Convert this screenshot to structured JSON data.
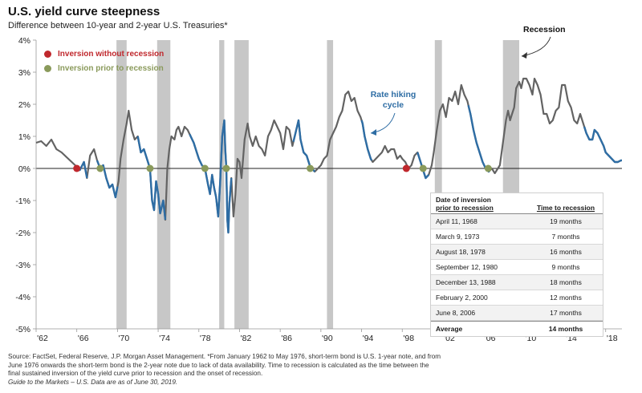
{
  "header": {
    "title": "U.S. yield curve steepness",
    "subtitle": "Difference between 10-year and 2-year U.S. Treasuries*"
  },
  "legend": {
    "items": [
      {
        "label": "Inversion without recession",
        "color": "#c0282d"
      },
      {
        "label": "Inversion prior to recession",
        "color": "#8a9a5b"
      }
    ]
  },
  "annotations": {
    "recession": "Recession",
    "rate_hiking_line1": "Rate hiking",
    "rate_hiking_line2": "cycle"
  },
  "table": {
    "header_col1_line1": "Date of inversion",
    "header_col1_line2": "prior to recession",
    "header_col2": "Time to recession",
    "rows": [
      {
        "date": "April 11, 1968",
        "time": "19 months"
      },
      {
        "date": "March 9, 1973",
        "time": "7 months"
      },
      {
        "date": "August 18, 1978",
        "time": "16 months"
      },
      {
        "date": "September 12, 1980",
        "time": "9 months"
      },
      {
        "date": "December 13, 1988",
        "time": "18 months"
      },
      {
        "date": "February 2, 2000",
        "time": "12 months"
      },
      {
        "date": "June 8, 2006",
        "time": "17 months"
      }
    ],
    "average_label": "Average",
    "average_value": "14 months"
  },
  "footnote": {
    "line1": "Source: FactSet, Federal Reserve, J.P. Morgan Asset Management. *From January 1962 to May 1976, short-term bond is U.S. 1-year note, and from",
    "line2": "June 1976 onwards the short-term bond is the 2-year note due to lack of data availability. Time to recession is calculated as the time between the",
    "line3": "final sustained inversion of the yield curve prior to recession and the onset of recession.",
    "line4": "Guide to the Markets – U.S. Data are as of June 30, 2019."
  },
  "colors": {
    "line": "#636363",
    "hiking": "#2e6da4",
    "recession_band": "#bdbdbd",
    "red_dot": "#c0282d",
    "olive_dot": "#8a9a5b"
  },
  "chart_data": {
    "type": "line",
    "xlim": [
      1962,
      2019.6
    ],
    "ylim": [
      -5,
      4
    ],
    "x_ticks": [
      1962,
      1966,
      1970,
      1974,
      1978,
      1982,
      1986,
      1990,
      1994,
      1998,
      2002,
      2006,
      2010,
      2014,
      2018
    ],
    "x_tick_labels": [
      "'62",
      "'66",
      "'70",
      "'74",
      "'78",
      "'82",
      "'86",
      "'90",
      "'94",
      "'98",
      "'02",
      "'06",
      "'10",
      "'14",
      "'18"
    ],
    "y_ticks": [
      -5,
      -4,
      -3,
      -2,
      -1,
      0,
      1,
      2,
      3,
      4
    ],
    "y_tick_labels": [
      "-5%",
      "-4%",
      "-3%",
      "-2%",
      "-1%",
      "0%",
      "1%",
      "2%",
      "3%",
      "4%"
    ],
    "recessions": [
      [
        1969.9,
        1970.9
      ],
      [
        1973.9,
        1975.2
      ],
      [
        1980.0,
        1980.5
      ],
      [
        1981.5,
        1982.9
      ],
      [
        1990.6,
        1991.2
      ],
      [
        2001.2,
        2001.9
      ],
      [
        2007.9,
        2009.5
      ]
    ],
    "series": [
      {
        "values": [
          [
            1962.0,
            0.8
          ],
          [
            1962.5,
            0.85
          ],
          [
            1963.0,
            0.7
          ],
          [
            1963.5,
            0.9
          ],
          [
            1964.0,
            0.6
          ],
          [
            1964.5,
            0.5
          ],
          [
            1965.0,
            0.35
          ],
          [
            1965.5,
            0.2
          ],
          [
            1966.0,
            0.05
          ],
          [
            1966.3,
            -0.05
          ],
          [
            1966.7,
            0.2
          ],
          [
            1967.0,
            -0.3
          ],
          [
            1967.3,
            0.4
          ],
          [
            1967.7,
            0.6
          ],
          [
            1968.0,
            0.25
          ],
          [
            1968.3,
            0.0
          ],
          [
            1968.6,
            0.1
          ],
          [
            1968.9,
            -0.3
          ],
          [
            1969.2,
            -0.6
          ],
          [
            1969.5,
            -0.5
          ],
          [
            1969.8,
            -0.9
          ],
          [
            1970.1,
            -0.4
          ],
          [
            1970.3,
            0.3
          ],
          [
            1970.6,
            0.9
          ],
          [
            1970.9,
            1.4
          ],
          [
            1971.1,
            1.8
          ],
          [
            1971.4,
            1.2
          ],
          [
            1971.7,
            0.9
          ],
          [
            1972.0,
            1.0
          ],
          [
            1972.3,
            0.5
          ],
          [
            1972.6,
            0.6
          ],
          [
            1972.9,
            0.3
          ],
          [
            1973.2,
            0.0
          ],
          [
            1973.4,
            -1.0
          ],
          [
            1973.6,
            -1.3
          ],
          [
            1973.8,
            -0.4
          ],
          [
            1974.0,
            -0.8
          ],
          [
            1974.2,
            -1.4
          ],
          [
            1974.5,
            -1.0
          ],
          [
            1974.7,
            -1.6
          ],
          [
            1974.9,
            0.0
          ],
          [
            1975.1,
            0.6
          ],
          [
            1975.3,
            1.0
          ],
          [
            1975.6,
            0.9
          ],
          [
            1975.8,
            1.2
          ],
          [
            1976.0,
            1.3
          ],
          [
            1976.3,
            1.0
          ],
          [
            1976.6,
            1.3
          ],
          [
            1976.9,
            1.2
          ],
          [
            1977.2,
            1.0
          ],
          [
            1977.5,
            0.8
          ],
          [
            1977.8,
            0.5
          ],
          [
            1978.0,
            0.3
          ],
          [
            1978.3,
            0.1
          ],
          [
            1978.6,
            0.0
          ],
          [
            1978.9,
            -0.5
          ],
          [
            1979.1,
            -0.8
          ],
          [
            1979.3,
            -0.2
          ],
          [
            1979.5,
            -0.6
          ],
          [
            1979.7,
            -0.9
          ],
          [
            1979.9,
            -1.5
          ],
          [
            1980.1,
            -0.4
          ],
          [
            1980.3,
            1.0
          ],
          [
            1980.5,
            1.5
          ],
          [
            1980.6,
            0.6
          ],
          [
            1980.7,
            0.0
          ],
          [
            1980.8,
            -1.6
          ],
          [
            1980.9,
            -2.0
          ],
          [
            1981.0,
            -1.1
          ],
          [
            1981.2,
            -0.3
          ],
          [
            1981.4,
            -1.5
          ],
          [
            1981.6,
            -0.8
          ],
          [
            1981.8,
            0.3
          ],
          [
            1982.0,
            0.2
          ],
          [
            1982.2,
            -0.3
          ],
          [
            1982.5,
            0.9
          ],
          [
            1982.8,
            1.4
          ],
          [
            1983.0,
            1.0
          ],
          [
            1983.3,
            0.7
          ],
          [
            1983.6,
            1.0
          ],
          [
            1983.9,
            0.7
          ],
          [
            1984.2,
            0.6
          ],
          [
            1984.5,
            0.4
          ],
          [
            1984.8,
            1.0
          ],
          [
            1985.1,
            1.2
          ],
          [
            1985.4,
            1.5
          ],
          [
            1985.7,
            1.3
          ],
          [
            1986.0,
            1.1
          ],
          [
            1986.3,
            0.6
          ],
          [
            1986.6,
            1.3
          ],
          [
            1986.9,
            1.2
          ],
          [
            1987.2,
            0.7
          ],
          [
            1987.5,
            1.1
          ],
          [
            1987.8,
            1.5
          ],
          [
            1988.0,
            0.9
          ],
          [
            1988.3,
            0.5
          ],
          [
            1988.6,
            0.4
          ],
          [
            1988.9,
            0.1
          ],
          [
            1989.1,
            0.0
          ],
          [
            1989.4,
            -0.1
          ],
          [
            1989.7,
            0.0
          ],
          [
            1990.0,
            0.1
          ],
          [
            1990.3,
            0.3
          ],
          [
            1990.6,
            0.4
          ],
          [
            1990.9,
            0.9
          ],
          [
            1991.2,
            1.1
          ],
          [
            1991.5,
            1.3
          ],
          [
            1991.8,
            1.6
          ],
          [
            1992.1,
            1.8
          ],
          [
            1992.4,
            2.3
          ],
          [
            1992.7,
            2.4
          ],
          [
            1993.0,
            2.1
          ],
          [
            1993.3,
            2.2
          ],
          [
            1993.6,
            1.8
          ],
          [
            1993.9,
            1.6
          ],
          [
            1994.1,
            1.4
          ],
          [
            1994.3,
            1.0
          ],
          [
            1994.6,
            0.6
          ],
          [
            1994.9,
            0.3
          ],
          [
            1995.1,
            0.2
          ],
          [
            1995.4,
            0.3
          ],
          [
            1995.7,
            0.4
          ],
          [
            1996.0,
            0.5
          ],
          [
            1996.3,
            0.7
          ],
          [
            1996.6,
            0.5
          ],
          [
            1996.9,
            0.6
          ],
          [
            1997.2,
            0.6
          ],
          [
            1997.5,
            0.3
          ],
          [
            1997.8,
            0.4
          ],
          [
            1998.0,
            0.3
          ],
          [
            1998.3,
            0.2
          ],
          [
            1998.6,
            0.0
          ],
          [
            1998.9,
            0.1
          ],
          [
            1999.2,
            0.4
          ],
          [
            1999.5,
            0.5
          ],
          [
            1999.8,
            0.2
          ],
          [
            2000.0,
            0.0
          ],
          [
            2000.3,
            -0.3
          ],
          [
            2000.6,
            -0.2
          ],
          [
            2000.9,
            0.1
          ],
          [
            2001.1,
            0.5
          ],
          [
            2001.4,
            1.2
          ],
          [
            2001.7,
            1.8
          ],
          [
            2002.0,
            2.0
          ],
          [
            2002.3,
            1.6
          ],
          [
            2002.6,
            2.2
          ],
          [
            2002.9,
            2.1
          ],
          [
            2003.2,
            2.4
          ],
          [
            2003.5,
            2.0
          ],
          [
            2003.8,
            2.6
          ],
          [
            2004.1,
            2.3
          ],
          [
            2004.4,
            2.1
          ],
          [
            2004.7,
            1.7
          ],
          [
            2005.0,
            1.2
          ],
          [
            2005.3,
            0.8
          ],
          [
            2005.6,
            0.5
          ],
          [
            2005.9,
            0.2
          ],
          [
            2006.2,
            0.0
          ],
          [
            2006.5,
            -0.1
          ],
          [
            2006.8,
            0.0
          ],
          [
            2007.1,
            -0.15
          ],
          [
            2007.4,
            0.0
          ],
          [
            2007.6,
            0.1
          ],
          [
            2007.9,
            0.8
          ],
          [
            2008.2,
            1.5
          ],
          [
            2008.4,
            1.8
          ],
          [
            2008.6,
            1.5
          ],
          [
            2008.8,
            1.7
          ],
          [
            2009.0,
            1.9
          ],
          [
            2009.2,
            2.5
          ],
          [
            2009.5,
            2.7
          ],
          [
            2009.7,
            2.5
          ],
          [
            2009.9,
            2.8
          ],
          [
            2010.2,
            2.8
          ],
          [
            2010.5,
            2.6
          ],
          [
            2010.8,
            2.3
          ],
          [
            2011.0,
            2.8
          ],
          [
            2011.3,
            2.6
          ],
          [
            2011.6,
            2.3
          ],
          [
            2011.9,
            1.7
          ],
          [
            2012.2,
            1.7
          ],
          [
            2012.5,
            1.4
          ],
          [
            2012.8,
            1.5
          ],
          [
            2013.1,
            1.8
          ],
          [
            2013.4,
            1.9
          ],
          [
            2013.7,
            2.6
          ],
          [
            2014.0,
            2.6
          ],
          [
            2014.3,
            2.1
          ],
          [
            2014.6,
            1.9
          ],
          [
            2014.9,
            1.5
          ],
          [
            2015.2,
            1.4
          ],
          [
            2015.5,
            1.7
          ],
          [
            2015.8,
            1.4
          ],
          [
            2016.1,
            1.1
          ],
          [
            2016.4,
            0.9
          ],
          [
            2016.7,
            0.9
          ],
          [
            2016.9,
            1.2
          ],
          [
            2017.2,
            1.1
          ],
          [
            2017.5,
            0.9
          ],
          [
            2017.8,
            0.7
          ],
          [
            2018.0,
            0.5
          ],
          [
            2018.3,
            0.4
          ],
          [
            2018.6,
            0.3
          ],
          [
            2018.9,
            0.2
          ],
          [
            2019.2,
            0.2
          ],
          [
            2019.5,
            0.25
          ]
        ]
      }
    ],
    "hiking_periods": [
      [
        1966.0,
        1967.0
      ],
      [
        1968.0,
        1970.0
      ],
      [
        1972.0,
        1974.7
      ],
      [
        1977.1,
        1981.2
      ],
      [
        1987.3,
        1989.4
      ],
      [
        1994.0,
        1995.0
      ],
      [
        1999.5,
        2000.6
      ],
      [
        2004.5,
        2006.6
      ],
      [
        2015.9,
        2019.6
      ]
    ],
    "red_dots": [
      [
        1966.0,
        0.0
      ],
      [
        1998.4,
        0.0
      ]
    ],
    "olive_dots": [
      [
        1968.3,
        0.0
      ],
      [
        1973.2,
        0.0
      ],
      [
        1978.6,
        0.0
      ],
      [
        1980.7,
        0.0
      ],
      [
        1988.95,
        0.0
      ],
      [
        2000.05,
        0.0
      ],
      [
        2006.45,
        0.0
      ]
    ]
  }
}
